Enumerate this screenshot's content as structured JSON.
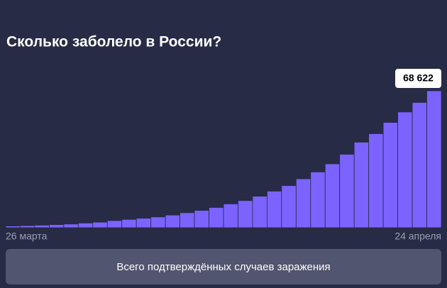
{
  "chart_data": {
    "type": "bar",
    "title": "Сколько заболело в России?",
    "categories": [
      "26 марта",
      null,
      null,
      null,
      null,
      null,
      null,
      null,
      null,
      null,
      null,
      null,
      null,
      null,
      null,
      null,
      null,
      null,
      null,
      null,
      null,
      null,
      null,
      null,
      null,
      null,
      null,
      null,
      null,
      "24 апреля"
    ],
    "values": [
      840,
      1036,
      1264,
      1534,
      1836,
      2337,
      2777,
      3548,
      4149,
      4731,
      5389,
      6343,
      7497,
      8672,
      10131,
      11917,
      13584,
      15770,
      18328,
      21102,
      24490,
      27938,
      32008,
      36793,
      42853,
      47121,
      52763,
      57999,
      62773,
      68622
    ],
    "value_labels": [
      null,
      null,
      null,
      null,
      null,
      null,
      null,
      null,
      null,
      null,
      null,
      null,
      null,
      null,
      null,
      null,
      null,
      null,
      null,
      null,
      null,
      null,
      null,
      null,
      null,
      null,
      null,
      null,
      null,
      "68 622"
    ],
    "color": "#7c63ff"
  },
  "button": {
    "label": "Всего подтверждённых случаев заражения"
  }
}
